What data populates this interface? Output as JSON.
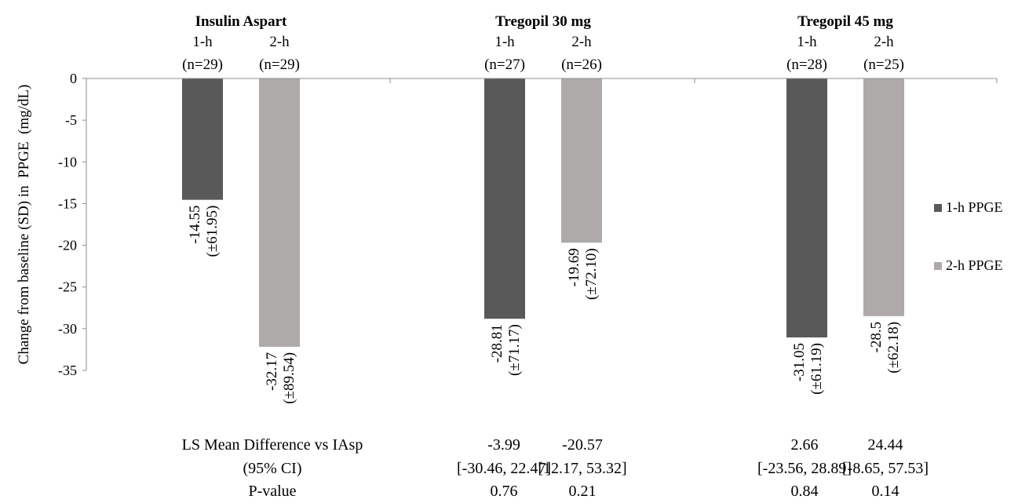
{
  "chart_data": {
    "type": "bar",
    "title": "",
    "xlabel": "",
    "ylabel": "Change from baseline (SD) in  PPGE  (mg/dL)",
    "ylim": [
      -35,
      0
    ],
    "yticks": [
      "0",
      "-5",
      "-10",
      "-15",
      "-20",
      "-25",
      "-30",
      "-35"
    ],
    "grid": false,
    "legend_position": "right",
    "colors": {
      "1-h PPGE": "#595959",
      "2-h PPGE": "#aeaaaa"
    },
    "groups": [
      {
        "name": "Insulin Aspart",
        "bars": [
          {
            "series": "1-h PPGE",
            "period": "1-h",
            "n": "(n=29)",
            "value": -14.55,
            "label_value": "-14.55",
            "label_sd": "(±61.95)"
          },
          {
            "series": "2-h PPGE",
            "period": "2-h",
            "n": "(n=29)",
            "value": -32.17,
            "label_value": "-32.17",
            "label_sd": "(±89.54)"
          }
        ]
      },
      {
        "name": "Tregopil 30 mg",
        "bars": [
          {
            "series": "1-h PPGE",
            "period": "1-h",
            "n": "(n=27)",
            "value": -28.81,
            "label_value": "-28.81",
            "label_sd": "(±71.17)"
          },
          {
            "series": "2-h PPGE",
            "period": "2-h",
            "n": "(n=26)",
            "value": -19.69,
            "label_value": "-19.69",
            "label_sd": "(±72.10)"
          }
        ]
      },
      {
        "name": "Tregopil 45 mg",
        "bars": [
          {
            "series": "1-h PPGE",
            "period": "1-h",
            "n": "(n=28)",
            "value": -31.05,
            "label_value": "-31.05",
            "label_sd": "(±61.19)"
          },
          {
            "series": "2-h PPGE",
            "period": "2-h",
            "n": "(n=25)",
            "value": -28.5,
            "label_value": "-28.5",
            "label_sd": "(±62.18)"
          }
        ]
      }
    ],
    "series": [
      {
        "name": "1-h PPGE",
        "values": [
          -14.55,
          -28.81,
          -31.05
        ]
      },
      {
        "name": "2-h PPGE",
        "values": [
          -32.17,
          -19.69,
          -28.5
        ]
      }
    ],
    "stats_table": {
      "row_labels": [
        "LS Mean Difference vs IAsp",
        "(95% CI)",
        "P-value"
      ],
      "columns": [
        {
          "group": "Tregopil 30 mg",
          "period": "1-h",
          "diff": "-3.99",
          "ci": "[-30.46, 22.47]",
          "p": "0.76"
        },
        {
          "group": "Tregopil 30 mg",
          "period": "2-h",
          "diff": "-20.57",
          "ci": "[12.17, 53.32]",
          "p": "0.21"
        },
        {
          "group": "Tregopil 45 mg",
          "period": "1-h",
          "diff": "2.66",
          "ci": "[-23.56, 28.89]",
          "p": "0.84"
        },
        {
          "group": "Tregopil 45 mg",
          "period": "2-h",
          "diff": "24.44",
          "ci": "[-8.65, 57.53]",
          "p": "0.14"
        }
      ]
    }
  }
}
